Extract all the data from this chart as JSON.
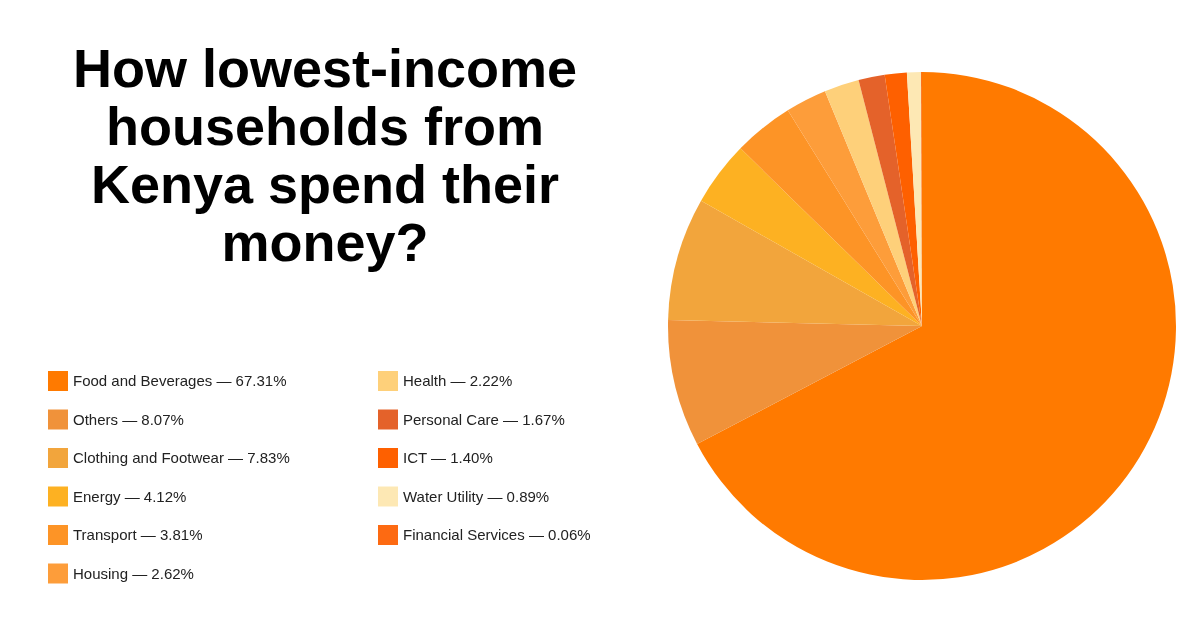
{
  "chart_data": {
    "type": "pie",
    "title": "How lowest-income households from Kenya spend their money?",
    "categories": [
      "Food and Beverages — 67.31%",
      "Others — 8.07%",
      "Clothing and Footwear — 7.83%",
      "Energy — 4.12%",
      "Transport — 3.81%",
      "Housing — 2.62%",
      "Health — 2.22%",
      "Personal Care — 1.67%",
      "ICT — 1.40%",
      "Water Utility — 0.89%",
      "Financial Services — 0.06%"
    ],
    "values": [
      67.31,
      8.07,
      7.83,
      4.12,
      3.81,
      2.62,
      2.22,
      1.67,
      1.4,
      0.89,
      0.06
    ],
    "colors": [
      "#ff7a00",
      "#f0923a",
      "#f2a53c",
      "#fdb122",
      "#fd9426",
      "#fd9d3a",
      "#fed07a",
      "#e4622a",
      "#fe6000",
      "#fde8b4",
      "#fd6a12"
    ],
    "legend": "left"
  }
}
